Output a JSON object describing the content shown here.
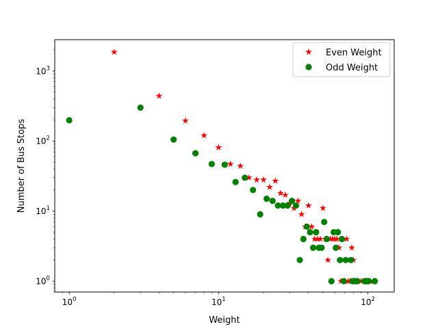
{
  "chart_data": {
    "type": "scatter",
    "title": "",
    "xlabel": "Weight",
    "ylabel": "Number of Bus Stops",
    "xscale": "log",
    "yscale": "log",
    "xlim": [
      0.8,
      150
    ],
    "ylim": [
      0.7,
      2800
    ],
    "x_ticks": [
      {
        "value": 1,
        "base": "10",
        "exp": "0"
      },
      {
        "value": 10,
        "base": "10",
        "exp": "1"
      },
      {
        "value": 100,
        "base": "10",
        "exp": "2"
      }
    ],
    "y_ticks": [
      {
        "value": 1,
        "base": "10",
        "exp": "0"
      },
      {
        "value": 10,
        "base": "10",
        "exp": "1"
      },
      {
        "value": 100,
        "base": "10",
        "exp": "2"
      },
      {
        "value": 1000,
        "base": "10",
        "exp": "3"
      }
    ],
    "legend_position": "top-right",
    "grid": false,
    "series": [
      {
        "name": "Even Weight",
        "color": "#ff0000",
        "marker": "star",
        "points": [
          [
            2,
            1860
          ],
          [
            4,
            440
          ],
          [
            6,
            195
          ],
          [
            8,
            120
          ],
          [
            10,
            81
          ],
          [
            12,
            47
          ],
          [
            14,
            44
          ],
          [
            16,
            30
          ],
          [
            18,
            28
          ],
          [
            20,
            28
          ],
          [
            22,
            22
          ],
          [
            24,
            27
          ],
          [
            26,
            18
          ],
          [
            28,
            17
          ],
          [
            30,
            13
          ],
          [
            32,
            11
          ],
          [
            34,
            14
          ],
          [
            36,
            9
          ],
          [
            38,
            6
          ],
          [
            40,
            12
          ],
          [
            42,
            6
          ],
          [
            44,
            4
          ],
          [
            46,
            4
          ],
          [
            48,
            4
          ],
          [
            50,
            11
          ],
          [
            52,
            4
          ],
          [
            54,
            2
          ],
          [
            56,
            4
          ],
          [
            58,
            4
          ],
          [
            60,
            4
          ],
          [
            62,
            4
          ],
          [
            64,
            3
          ],
          [
            66,
            1
          ],
          [
            70,
            1
          ],
          [
            72,
            4
          ],
          [
            74,
            1
          ],
          [
            76,
            1
          ],
          [
            78,
            3
          ],
          [
            80,
            2
          ],
          [
            82,
            1
          ],
          [
            86,
            1
          ],
          [
            90,
            1
          ],
          [
            96,
            1
          ],
          [
            100,
            1
          ],
          [
            104,
            1
          ],
          [
            112,
            1
          ]
        ]
      },
      {
        "name": "Odd Weight",
        "color": "#008000",
        "marker": "circle",
        "points": [
          [
            1,
            198
          ],
          [
            3,
            300
          ],
          [
            5,
            105
          ],
          [
            7,
            67
          ],
          [
            9,
            47
          ],
          [
            11,
            46
          ],
          [
            13,
            26
          ],
          [
            15,
            30
          ],
          [
            17,
            20
          ],
          [
            19,
            9
          ],
          [
            21,
            15
          ],
          [
            23,
            14
          ],
          [
            25,
            12
          ],
          [
            27,
            12
          ],
          [
            29,
            12
          ],
          [
            31,
            14
          ],
          [
            33,
            12
          ],
          [
            35,
            2
          ],
          [
            37,
            4
          ],
          [
            39,
            6
          ],
          [
            41,
            5
          ],
          [
            43,
            3
          ],
          [
            45,
            5
          ],
          [
            47,
            3
          ],
          [
            49,
            3
          ],
          [
            51,
            7
          ],
          [
            53,
            4
          ],
          [
            57,
            1
          ],
          [
            59,
            5
          ],
          [
            61,
            3
          ],
          [
            63,
            5
          ],
          [
            65,
            2
          ],
          [
            67,
            4
          ],
          [
            69,
            1
          ],
          [
            71,
            2
          ],
          [
            77,
            2
          ],
          [
            79,
            1
          ],
          [
            81,
            1
          ],
          [
            83,
            1
          ],
          [
            85,
            1
          ],
          [
            95,
            1
          ],
          [
            97,
            1
          ],
          [
            99,
            1
          ],
          [
            101,
            1
          ],
          [
            111,
            1
          ]
        ]
      }
    ]
  }
}
